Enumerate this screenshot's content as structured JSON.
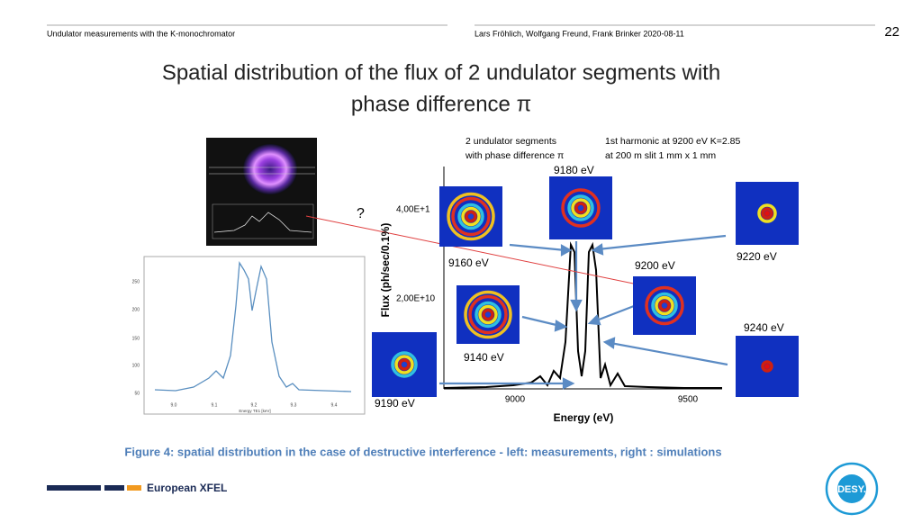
{
  "header": {
    "left": "Undulator measurements with the K-monochromator",
    "right": "Lars Fröhlich, Wolfgang Freund, Frank Brinker 2020-08-11",
    "page_number": "22"
  },
  "title": [
    "Spatial distribution of the flux of 2 undulator segments with",
    "phase difference π"
  ],
  "measurement": {
    "yticks": [
      250,
      200,
      150,
      100,
      50
    ],
    "xticks": [
      "9.0",
      "9.1",
      "9.2",
      "9.3",
      "9.4"
    ],
    "xlabel": "Energy TE1 [keV]"
  },
  "simulation": {
    "note_left": [
      "2 undulator segments",
      "with phase difference π"
    ],
    "note_right": [
      "1st harmonic at 9200 eV K=2.85",
      "at 200 m slit 1 mm x 1 mm"
    ],
    "ylabel": "Flux (ph/sec/0.1%)",
    "yticks": [
      "4,00E+1",
      "2,00E+10"
    ],
    "xlabel": "Energy (eV)",
    "xticks": [
      9000,
      9500
    ],
    "insets": [
      "9180 eV",
      "9160 eV",
      "9220 eV",
      "9200 eV",
      "9140 eV",
      "9240 eV",
      "9190 eV"
    ],
    "question": "?"
  },
  "caption": "Figure 4: spatial distribution in the case of destructive interference - left: measurements, right : simulations",
  "footer": {
    "brand": "European XFEL",
    "logo": "DESY."
  }
}
